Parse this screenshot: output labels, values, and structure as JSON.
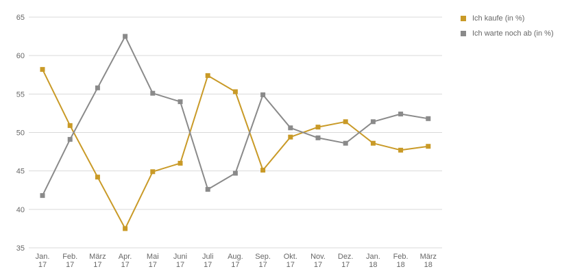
{
  "chart_data": {
    "type": "line",
    "categories": [
      [
        "Jan.",
        "17"
      ],
      [
        "Feb.",
        "17"
      ],
      [
        "März",
        "17"
      ],
      [
        "Apr.",
        "17"
      ],
      [
        "Mai",
        "17"
      ],
      [
        "Juni",
        "17"
      ],
      [
        "Juli",
        "17"
      ],
      [
        "Aug.",
        "17"
      ],
      [
        "Sep.",
        "17"
      ],
      [
        "Okt.",
        "17"
      ],
      [
        "Nov.",
        "17"
      ],
      [
        "Dez.",
        "17"
      ],
      [
        "Jan.",
        "18"
      ],
      [
        "Feb.",
        "18"
      ],
      [
        "März",
        "18"
      ]
    ],
    "series": [
      {
        "name": "Ich kaufe (in %)",
        "color": "#c99a27",
        "values": [
          58.2,
          50.9,
          44.2,
          37.5,
          44.9,
          46.0,
          57.4,
          55.3,
          45.1,
          49.4,
          50.7,
          51.4,
          48.6,
          47.7,
          48.2
        ]
      },
      {
        "name": "Ich warte noch ab (in %)",
        "color": "#8a8a8a",
        "values": [
          41.8,
          49.1,
          55.8,
          62.5,
          55.1,
          54.0,
          42.6,
          44.7,
          54.9,
          50.6,
          49.3,
          48.6,
          51.4,
          52.4,
          51.8
        ]
      }
    ],
    "ylim": [
      35,
      65
    ],
    "yticks": [
      35,
      40,
      45,
      50,
      55,
      60,
      65
    ],
    "grid": true,
    "legend_position": "top-right"
  }
}
